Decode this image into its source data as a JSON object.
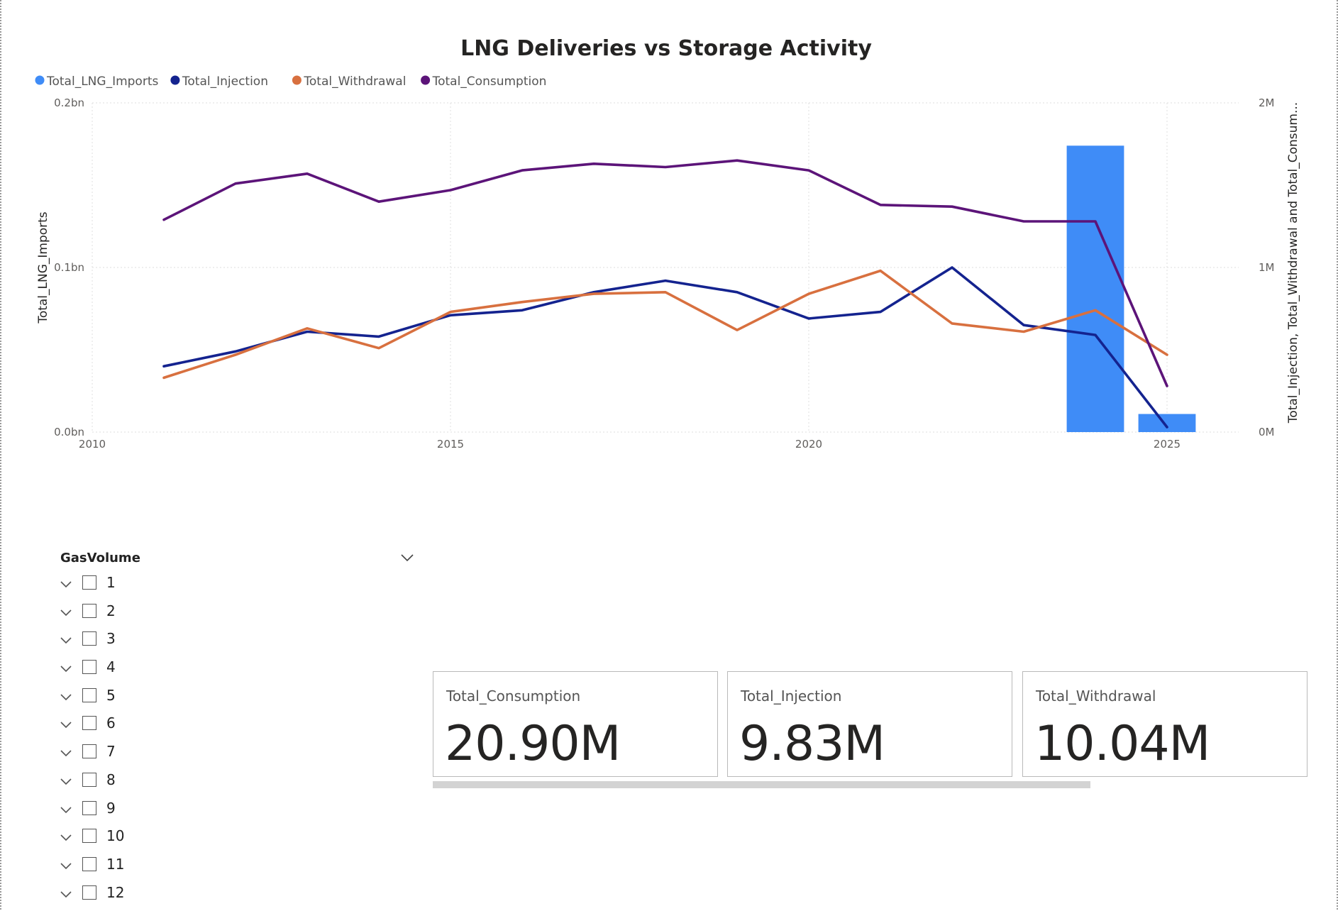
{
  "colors": {
    "lng_imports": "#3f8cf7",
    "injection": "#14238f",
    "withdrawal": "#d8703f",
    "consumption": "#5c1479",
    "grid": "#e4e4e4",
    "axis_text": "#605e5c"
  },
  "chart_data": {
    "type": "combo-bar-line",
    "title": "LNG Deliveries vs Storage Activity",
    "legend_position": "top-left",
    "grid": true,
    "legend": [
      "Total_LNG_Imports",
      "Total_Injection",
      "Total_Withdrawal",
      "Total_Consumption"
    ],
    "x_axis": {
      "min": 2010,
      "max": 2026,
      "ticks": [
        "2010",
        "2015",
        "2020",
        "2025"
      ]
    },
    "y_left": {
      "label": "Total_LNG_Imports",
      "min": 0,
      "max": 0.2,
      "tick_values": [
        0,
        0.1,
        0.2
      ],
      "ticks": [
        "0.0bn",
        "0.1bn",
        "0.2bn"
      ]
    },
    "y_right": {
      "label": "Total_Injection, Total_Withdrawal and Total_Consum...",
      "min": 0,
      "max": 2,
      "tick_values": [
        0,
        1,
        2
      ],
      "ticks": [
        "0M",
        "1M",
        "2M"
      ]
    },
    "bar_series": {
      "name": "Total_LNG_Imports",
      "axis": "left",
      "x": [
        2024,
        2025
      ],
      "values": [
        0.174,
        0.011
      ]
    },
    "line_series": [
      {
        "name": "Total_Injection",
        "axis": "right",
        "x": [
          2011,
          2012,
          2013,
          2014,
          2015,
          2016,
          2017,
          2018,
          2019,
          2020,
          2021,
          2022,
          2023,
          2024,
          2025
        ],
        "values": [
          0.4,
          0.49,
          0.61,
          0.58,
          0.71,
          0.74,
          0.85,
          0.92,
          0.85,
          0.69,
          0.73,
          1.0,
          0.65,
          0.59,
          0.03
        ]
      },
      {
        "name": "Total_Withdrawal",
        "axis": "right",
        "x": [
          2011,
          2012,
          2013,
          2014,
          2015,
          2016,
          2017,
          2018,
          2019,
          2020,
          2021,
          2022,
          2023,
          2024,
          2025
        ],
        "values": [
          0.33,
          0.47,
          0.63,
          0.51,
          0.73,
          0.79,
          0.84,
          0.85,
          0.62,
          0.84,
          0.98,
          0.66,
          0.61,
          0.74,
          0.47
        ]
      },
      {
        "name": "Total_Consumption",
        "axis": "right",
        "x": [
          2011,
          2012,
          2013,
          2014,
          2015,
          2016,
          2017,
          2018,
          2019,
          2020,
          2021,
          2022,
          2023,
          2024,
          2025
        ],
        "values": [
          1.29,
          1.51,
          1.57,
          1.4,
          1.47,
          1.59,
          1.63,
          1.61,
          1.65,
          1.59,
          1.38,
          1.37,
          1.28,
          1.28,
          0.28
        ]
      }
    ]
  },
  "slicer": {
    "title": "GasVolume",
    "items": [
      "1",
      "2",
      "3",
      "4",
      "5",
      "6",
      "7",
      "8",
      "9",
      "10",
      "11",
      "12"
    ]
  },
  "kpis": {
    "consumption": {
      "label": "Total_Consumption",
      "value": "20.90M"
    },
    "injection": {
      "label": "Total_Injection",
      "value": "9.83M"
    },
    "withdrawal": {
      "label": "Total_Withdrawal",
      "value": "10.04M"
    }
  }
}
